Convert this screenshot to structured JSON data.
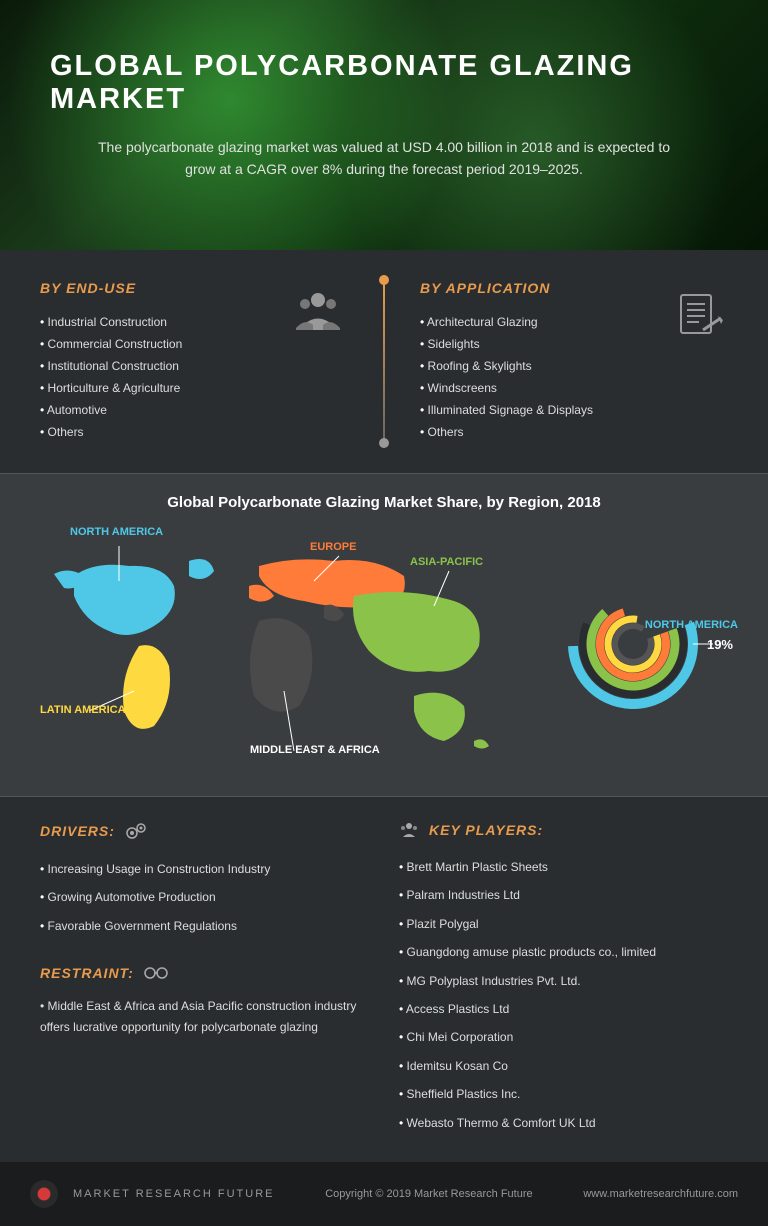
{
  "hero": {
    "title": "GLOBAL POLYCARBONATE GLAZING MARKET",
    "subtitle": "The polycarbonate glazing market was valued at USD 4.00 billion in 2018 and is expected to grow at a CAGR over 8% during the forecast period 2019–2025."
  },
  "segments": {
    "endUse": {
      "heading": "BY END-USE",
      "items": [
        "Industrial Construction",
        "Commercial Construction",
        "Institutional Construction",
        "Horticulture & Agriculture",
        "Automotive",
        "Others"
      ]
    },
    "application": {
      "heading": "BY APPLICATION",
      "items": [
        "Architectural Glazing",
        "Sidelights",
        "Roofing & Skylights",
        "Windscreens",
        "Illuminated Signage & Displays",
        "Others"
      ]
    }
  },
  "map": {
    "title": "Global Polycarbonate Glazing Market Share, by Region, 2018",
    "regions": {
      "na": {
        "label": "NORTH AMERICA",
        "color": "#4fc8e8"
      },
      "eu": {
        "label": "EUROPE",
        "color": "#ff7b3a"
      },
      "ap": {
        "label": "ASIA-PACIFIC",
        "color": "#8bc34a"
      },
      "la": {
        "label": "LATIN AMERICA",
        "color": "#ffd940"
      },
      "me": {
        "label": "MIDDLE EAST & AFRICA",
        "color": "#4a4a4a"
      }
    },
    "donut": {
      "highlight_label": "NORTH AMERICA",
      "highlight_value": "19%",
      "rings": [
        {
          "color": "#4fc8e8",
          "r": 60,
          "w": 10
        },
        {
          "color": "#2a2d30",
          "r": 50,
          "w": 8
        },
        {
          "color": "#8bc34a",
          "r": 42,
          "w": 9
        },
        {
          "color": "#ff7b3a",
          "r": 33,
          "w": 8
        },
        {
          "color": "#ffd940",
          "r": 25,
          "w": 7
        },
        {
          "color": "#555",
          "r": 18,
          "w": 6
        }
      ]
    }
  },
  "drivers": {
    "heading": "DRIVERS:",
    "items": [
      "Increasing Usage in Construction Industry",
      "Growing Automotive Production",
      "Favorable Government Regulations"
    ]
  },
  "restraint": {
    "heading": "RESTRAINT:",
    "text": "Middle East & Africa and Asia Pacific construction industry offers lucrative opportunity for polycarbonate glazing"
  },
  "keyPlayers": {
    "heading": "KEY PLAYERS:",
    "items": [
      "Brett Martin Plastic Sheets",
      "Palram Industries Ltd",
      "Plazit Polygal",
      "Guangdong amuse plastic products co., limited",
      "MG Polyplast Industries Pvt. Ltd.",
      "Access Plastics Ltd",
      "Chi Mei Corporation",
      "Idemitsu Kosan Co",
      "Sheffield Plastics Inc.",
      "Webasto Thermo & Comfort UK Ltd"
    ]
  },
  "footer": {
    "brand": "MARKET RESEARCH FUTURE",
    "copyright": "Copyright © 2019 Market Research Future",
    "url": "www.marketresearchfuture.com"
  },
  "colors": {
    "accent": "#e89b4c",
    "bg_dark": "#2a2d30",
    "bg_mid": "#3a3d40",
    "bg_footer": "#1a1c1e"
  }
}
